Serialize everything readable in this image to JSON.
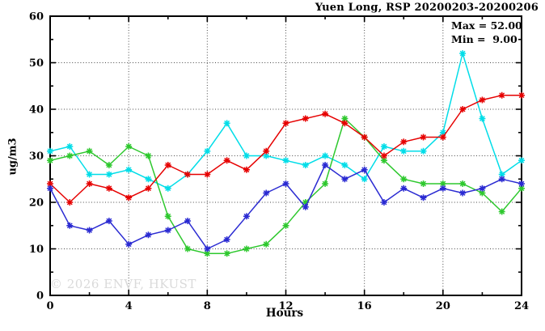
{
  "title": "Yuen Long, RSP 20200203-20200206",
  "stats": {
    "max_label": "Max = 52.00",
    "min_label": "Min =  9.00"
  },
  "watermark": "© 2026 ENVF, HKUST",
  "chart_data": {
    "type": "line",
    "title": "Yuen Long, RSP 20200203-20200206",
    "xlabel": "Hours",
    "ylabel": "ug/m3",
    "xlim": [
      0,
      24
    ],
    "ylim": [
      0,
      60
    ],
    "x_ticks": [
      0,
      4,
      8,
      12,
      16,
      20,
      24
    ],
    "y_ticks": [
      0,
      10,
      20,
      30,
      40,
      50,
      60
    ],
    "x_minor_step": 2,
    "y_minor_step": 5,
    "grid": true,
    "legend_position": "none",
    "annotations": {
      "max": 52.0,
      "min": 9.0
    },
    "x": [
      0,
      1,
      2,
      3,
      4,
      5,
      6,
      7,
      8,
      9,
      10,
      11,
      12,
      13,
      14,
      15,
      16,
      17,
      18,
      19,
      20,
      21,
      22,
      23,
      24
    ],
    "series": [
      {
        "name": "series-red",
        "color": "#e60000",
        "values": [
          24,
          20,
          24,
          23,
          21,
          23,
          28,
          26,
          26,
          29,
          27,
          31,
          37,
          38,
          39,
          37,
          34,
          30,
          33,
          34,
          34,
          40,
          42,
          43,
          43
        ]
      },
      {
        "name": "series-cyan",
        "color": "#00dde8",
        "values": [
          31,
          32,
          26,
          26,
          27,
          25,
          23,
          26,
          31,
          37,
          30,
          30,
          29,
          28,
          30,
          28,
          25,
          32,
          31,
          31,
          35,
          52,
          38,
          26,
          29
        ]
      },
      {
        "name": "series-green",
        "color": "#2ec82e",
        "values": [
          29,
          30,
          31,
          28,
          32,
          30,
          17,
          10,
          9,
          9,
          10,
          11,
          15,
          20,
          24,
          38,
          34,
          29,
          25,
          24,
          24,
          24,
          22,
          18,
          23
        ]
      },
      {
        "name": "series-blue",
        "color": "#2a2ad2",
        "values": [
          23,
          15,
          14,
          16,
          11,
          13,
          14,
          16,
          10,
          12,
          17,
          22,
          24,
          19,
          28,
          25,
          27,
          20,
          23,
          21,
          23,
          22,
          23,
          25,
          24
        ]
      }
    ]
  }
}
